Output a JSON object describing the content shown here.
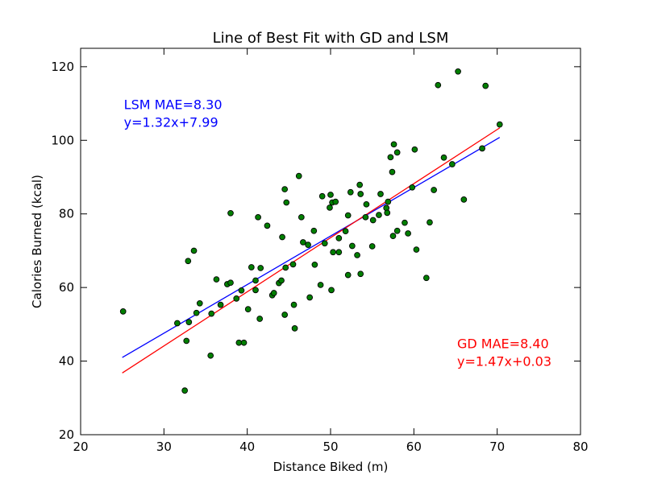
{
  "chart_data": {
    "type": "scatter",
    "title": "Line of Best Fit with GD and LSM",
    "xlabel": "Distance Biked (m)",
    "ylabel": "Calories Burned (kcal)",
    "xlim": [
      20,
      80
    ],
    "ylim": [
      20,
      125
    ],
    "xticks": [
      20,
      30,
      40,
      50,
      60,
      70,
      80
    ],
    "yticks": [
      20,
      40,
      60,
      80,
      100,
      120
    ],
    "grid": false,
    "colors": {
      "points_fill": "#007f00",
      "points_edge": "#000000",
      "lsm": "#0000ff",
      "gd": "#ff0000"
    },
    "series": [
      {
        "type": "scatter",
        "points": [
          [
            25.1,
            53.5
          ],
          [
            31.6,
            50.3
          ],
          [
            32.5,
            32.0
          ],
          [
            32.7,
            45.5
          ],
          [
            32.9,
            67.2
          ],
          [
            33.0,
            50.6
          ],
          [
            33.6,
            70.0
          ],
          [
            33.9,
            53.1
          ],
          [
            34.3,
            55.7
          ],
          [
            35.6,
            41.5
          ],
          [
            35.7,
            52.9
          ],
          [
            36.3,
            62.2
          ],
          [
            36.8,
            55.3
          ],
          [
            37.6,
            60.9
          ],
          [
            38.0,
            61.3
          ],
          [
            38.0,
            80.2
          ],
          [
            38.7,
            57.0
          ],
          [
            39.0,
            45.0
          ],
          [
            39.3,
            59.2
          ],
          [
            39.6,
            45.0
          ],
          [
            40.1,
            54.1
          ],
          [
            40.5,
            65.5
          ],
          [
            41.0,
            59.3
          ],
          [
            41.0,
            61.9
          ],
          [
            41.3,
            79.1
          ],
          [
            41.5,
            51.5
          ],
          [
            41.6,
            65.3
          ],
          [
            42.4,
            76.8
          ],
          [
            43.0,
            57.9
          ],
          [
            43.2,
            58.5
          ],
          [
            43.8,
            61.2
          ],
          [
            44.1,
            61.9
          ],
          [
            44.2,
            73.7
          ],
          [
            44.5,
            86.7
          ],
          [
            44.5,
            52.6
          ],
          [
            44.6,
            65.4
          ],
          [
            44.7,
            83.1
          ],
          [
            45.5,
            66.3
          ],
          [
            45.6,
            55.3
          ],
          [
            45.7,
            48.9
          ],
          [
            46.2,
            90.3
          ],
          [
            46.5,
            79.1
          ],
          [
            46.7,
            72.3
          ],
          [
            47.3,
            71.6
          ],
          [
            47.5,
            57.3
          ],
          [
            48.0,
            75.4
          ],
          [
            48.1,
            66.2
          ],
          [
            48.8,
            60.7
          ],
          [
            49.0,
            84.8
          ],
          [
            49.3,
            72.0
          ],
          [
            49.9,
            81.7
          ],
          [
            50.0,
            85.2
          ],
          [
            50.1,
            59.3
          ],
          [
            50.2,
            83.1
          ],
          [
            50.3,
            69.6
          ],
          [
            50.6,
            83.3
          ],
          [
            51.0,
            73.4
          ],
          [
            51.0,
            69.6
          ],
          [
            51.8,
            75.3
          ],
          [
            52.1,
            63.4
          ],
          [
            52.1,
            79.6
          ],
          [
            52.4,
            85.9
          ],
          [
            52.6,
            71.3
          ],
          [
            53.2,
            68.8
          ],
          [
            53.5,
            87.9
          ],
          [
            53.6,
            85.4
          ],
          [
            53.6,
            63.7
          ],
          [
            54.2,
            79.1
          ],
          [
            54.3,
            82.6
          ],
          [
            55.0,
            71.2
          ],
          [
            55.1,
            78.3
          ],
          [
            55.8,
            79.7
          ],
          [
            56.0,
            85.4
          ],
          [
            56.7,
            81.6
          ],
          [
            56.8,
            80.3
          ],
          [
            56.9,
            83.3
          ],
          [
            57.2,
            95.4
          ],
          [
            57.4,
            91.4
          ],
          [
            57.5,
            74.0
          ],
          [
            57.6,
            98.9
          ],
          [
            58.0,
            75.4
          ],
          [
            58.0,
            96.7
          ],
          [
            58.9,
            77.6
          ],
          [
            59.3,
            74.7
          ],
          [
            59.8,
            87.2
          ],
          [
            60.1,
            97.5
          ],
          [
            60.3,
            70.3
          ],
          [
            61.5,
            62.6
          ],
          [
            61.9,
            77.7
          ],
          [
            62.4,
            86.5
          ],
          [
            62.9,
            115.0
          ],
          [
            63.6,
            95.3
          ],
          [
            64.6,
            93.5
          ],
          [
            65.3,
            118.7
          ],
          [
            66.0,
            83.9
          ],
          [
            68.2,
            97.8
          ],
          [
            68.6,
            114.8
          ],
          [
            70.3,
            104.3
          ]
        ]
      },
      {
        "name": "LSM",
        "type": "line",
        "slope": 1.32,
        "intercept": 7.99,
        "x_range": [
          25,
          70.3
        ]
      },
      {
        "name": "GD",
        "type": "line",
        "slope": 1.47,
        "intercept": 0.03,
        "x_range": [
          25,
          70.3
        ]
      }
    ],
    "annotations": [
      {
        "lines": [
          "LSM MAE=8.30",
          "y=1.32x+7.99"
        ],
        "color": "#0000ff",
        "x": 25,
        "y": 108.5
      },
      {
        "lines": [
          "GD MAE=8.40",
          "y=1.47x+0.03"
        ],
        "color": "#ff0000",
        "x": 65,
        "y": 43.5
      }
    ]
  }
}
